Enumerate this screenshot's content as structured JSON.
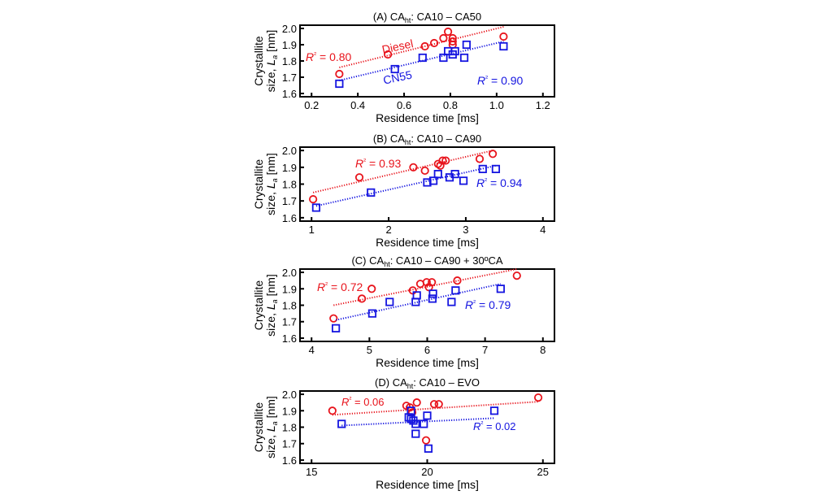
{
  "chart_data": [
    {
      "type": "scatter",
      "panel": "A",
      "title_prefix": "(A) CA",
      "title_sub": "ht",
      "title_suffix": ": CA10 – CA50",
      "xlabel": "Residence time [ms]",
      "ylabel_line1": "Crystallite",
      "ylabel_line2_prefix": "size, ",
      "ylabel_symbol": "L",
      "ylabel_symbol_sub": "a",
      "ylabel_line2_suffix": " [nm]",
      "xlim": [
        0.15,
        1.25
      ],
      "ylim": [
        1.58,
        2.02
      ],
      "xticks": [
        0.2,
        0.4,
        0.6,
        0.8,
        1.0,
        1.2
      ],
      "xtick_labels": [
        "0.2",
        "0.4",
        "0.6",
        "0.8",
        "1.0",
        "1.2"
      ],
      "yticks": [
        1.6,
        1.7,
        1.8,
        1.9,
        2.0
      ],
      "ytick_labels": [
        "1.6",
        "1.7",
        "1.8",
        "1.9",
        "2.0"
      ],
      "grid": false,
      "series": [
        {
          "name": "Diesel",
          "color": "#e8141c",
          "marker": "circle",
          "x": [
            0.32,
            0.53,
            0.69,
            0.73,
            0.77,
            0.79,
            0.81,
            0.81,
            0.81,
            1.03
          ],
          "y": [
            1.72,
            1.84,
            1.89,
            1.91,
            1.94,
            1.98,
            1.94,
            1.92,
            1.9,
            1.95
          ],
          "fit": {
            "x": [
              0.32,
              1.03
            ],
            "y": [
              1.76,
              2.01
            ]
          },
          "r2_label": "= 0.80",
          "label": "Diesel"
        },
        {
          "name": "CN55",
          "color": "#1515e0",
          "marker": "square",
          "x": [
            0.32,
            0.56,
            0.68,
            0.77,
            0.79,
            0.82,
            0.81,
            0.86,
            0.87,
            1.03
          ],
          "y": [
            1.66,
            1.75,
            1.82,
            1.82,
            1.86,
            1.86,
            1.84,
            1.82,
            1.9,
            1.89
          ],
          "fit": {
            "x": [
              0.32,
              1.03
            ],
            "y": [
              1.68,
              1.92
            ]
          },
          "r2_label": "= 0.90",
          "label": "CN55"
        }
      ]
    },
    {
      "type": "scatter",
      "panel": "B",
      "title_prefix": "(B) CA",
      "title_sub": "ht",
      "title_suffix": ": CA10 – CA90",
      "xlabel": "Residence time [ms]",
      "ylabel_line1": "Crystallite",
      "ylabel_line2_prefix": "size, ",
      "ylabel_symbol": "L",
      "ylabel_symbol_sub": "a",
      "ylabel_line2_suffix": " [nm]",
      "xlim": [
        0.85,
        4.15
      ],
      "ylim": [
        1.58,
        2.02
      ],
      "xticks": [
        1,
        2,
        3,
        4
      ],
      "xtick_labels": [
        "1",
        "2",
        "3",
        "4"
      ],
      "yticks": [
        1.6,
        1.7,
        1.8,
        1.9,
        2.0
      ],
      "ytick_labels": [
        "1.6",
        "1.7",
        "1.8",
        "1.9",
        "2.0"
      ],
      "grid": false,
      "series": [
        {
          "name": "Diesel",
          "color": "#e8141c",
          "marker": "circle",
          "x": [
            1.02,
            1.62,
            2.32,
            2.47,
            2.64,
            2.67,
            2.7,
            2.74,
            3.18,
            3.35
          ],
          "y": [
            1.71,
            1.84,
            1.9,
            1.88,
            1.92,
            1.91,
            1.94,
            1.94,
            1.95,
            1.98
          ],
          "fit": {
            "x": [
              1.02,
              3.35
            ],
            "y": [
              1.75,
              2.0
            ]
          },
          "r2_label": "= 0.93"
        },
        {
          "name": "CN55",
          "color": "#1515e0",
          "marker": "square",
          "x": [
            1.06,
            1.77,
            2.5,
            2.58,
            2.64,
            2.79,
            2.86,
            2.97,
            3.22,
            3.39
          ],
          "y": [
            1.66,
            1.75,
            1.81,
            1.82,
            1.86,
            1.84,
            1.86,
            1.82,
            1.89,
            1.89
          ],
          "fit": {
            "x": [
              1.06,
              3.39
            ],
            "y": [
              1.67,
              1.91
            ]
          },
          "r2_label": "= 0.94"
        }
      ]
    },
    {
      "type": "scatter",
      "panel": "C",
      "title_prefix": "(C) CA",
      "title_sub": "ht",
      "title_suffix": ": CA10 – CA90 + 30ºCA",
      "xlabel": "Residence time [ms]",
      "ylabel_line1": "Crystallite",
      "ylabel_line2_prefix": "size, ",
      "ylabel_symbol": "L",
      "ylabel_symbol_sub": "a",
      "ylabel_line2_suffix": " [nm]",
      "xlim": [
        3.8,
        8.2
      ],
      "ylim": [
        1.58,
        2.02
      ],
      "xticks": [
        4,
        5,
        6,
        7,
        8
      ],
      "xtick_labels": [
        "4",
        "5",
        "6",
        "7",
        "8"
      ],
      "yticks": [
        1.6,
        1.7,
        1.8,
        1.9,
        2.0
      ],
      "ytick_labels": [
        "1.6",
        "1.7",
        "1.8",
        "1.9",
        "2.0"
      ],
      "grid": false,
      "series": [
        {
          "name": "Diesel",
          "color": "#e8141c",
          "marker": "circle",
          "x": [
            4.38,
            4.87,
            5.04,
            5.75,
            5.88,
            5.99,
            6.03,
            6.08,
            6.52,
            7.55
          ],
          "y": [
            1.72,
            1.84,
            1.9,
            1.89,
            1.93,
            1.94,
            1.91,
            1.94,
            1.95,
            1.98
          ],
          "fit": {
            "x": [
              4.38,
              7.55
            ],
            "y": [
              1.8,
              2.02
            ]
          },
          "r2_label": "= 0.72"
        },
        {
          "name": "CN55",
          "color": "#1515e0",
          "marker": "square",
          "x": [
            4.42,
            5.05,
            5.35,
            5.8,
            5.82,
            6.09,
            6.1,
            6.42,
            6.49,
            7.27
          ],
          "y": [
            1.66,
            1.75,
            1.82,
            1.82,
            1.86,
            1.84,
            1.87,
            1.82,
            1.89,
            1.9
          ],
          "fit": {
            "x": [
              4.42,
              7.27
            ],
            "y": [
              1.71,
              1.93
            ]
          },
          "r2_label": "= 0.79"
        }
      ]
    },
    {
      "type": "scatter",
      "panel": "D",
      "title_prefix": "(D) CA",
      "title_sub": "ht",
      "title_suffix": ": CA10 – EVO",
      "xlabel": "Residence time [ms]",
      "ylabel_line1": "Crystallite",
      "ylabel_line2_prefix": "size, ",
      "ylabel_symbol": "L",
      "ylabel_symbol_sub": "a",
      "ylabel_line2_suffix": " [nm]",
      "xlim": [
        14.5,
        25.5
      ],
      "ylim": [
        1.58,
        2.02
      ],
      "xticks": [
        15,
        20,
        25
      ],
      "xtick_labels": [
        "15",
        "20",
        "25"
      ],
      "yticks": [
        1.6,
        1.7,
        1.8,
        1.9,
        2.0
      ],
      "ytick_labels": [
        "1.6",
        "1.7",
        "1.8",
        "1.9",
        "2.0"
      ],
      "grid": false,
      "series": [
        {
          "name": "Diesel",
          "color": "#e8141c",
          "marker": "circle",
          "x": [
            15.9,
            19.1,
            19.25,
            19.35,
            19.55,
            19.95,
            20.3,
            20.5,
            24.8
          ],
          "y": [
            1.9,
            1.93,
            1.92,
            1.89,
            1.95,
            1.72,
            1.94,
            1.94,
            1.98
          ],
          "fit": {
            "x": [
              15.9,
              24.8
            ],
            "y": [
              1.875,
              1.955
            ]
          },
          "r2_label": "= 0.06"
        },
        {
          "name": "CN55",
          "color": "#1515e0",
          "marker": "square",
          "x": [
            16.3,
            19.2,
            19.3,
            19.3,
            19.4,
            19.5,
            19.5,
            19.85,
            20.0,
            20.05,
            22.9
          ],
          "y": [
            1.82,
            1.86,
            1.9,
            1.85,
            1.84,
            1.82,
            1.76,
            1.82,
            1.87,
            1.67,
            1.9
          ],
          "fit": {
            "x": [
              16.3,
              22.9
            ],
            "y": [
              1.81,
              1.855
            ]
          },
          "r2_label": "= 0.02"
        }
      ]
    }
  ]
}
